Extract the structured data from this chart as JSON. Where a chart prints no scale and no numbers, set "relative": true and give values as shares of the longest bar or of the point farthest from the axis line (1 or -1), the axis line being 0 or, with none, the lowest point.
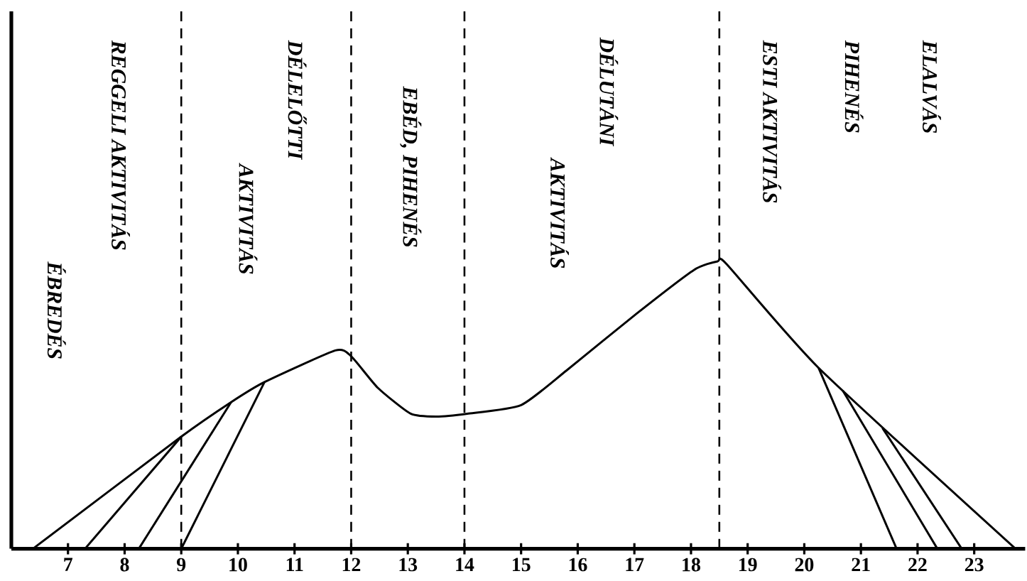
{
  "chart_data": {
    "type": "line",
    "relative": true,
    "xlim": [
      6.0,
      23.9
    ],
    "xticks": [
      7,
      8,
      9,
      10,
      11,
      12,
      13,
      14,
      15,
      16,
      17,
      18,
      19,
      20,
      21,
      22,
      23
    ],
    "series": [
      {
        "color": "#000000",
        "x": [
          6.38,
          9.0,
          9.88,
          10.47,
          11.72,
          12.0,
          12.47,
          13.05,
          13.5,
          14.05,
          15.0,
          15.8,
          17.05,
          18.05,
          18.47,
          18.63,
          20.25,
          23.73
        ],
        "values": [
          0,
          0.39,
          0.51,
          0.58,
          0.69,
          0.67,
          0.56,
          0.47,
          0.46,
          0.47,
          0.5,
          0.62,
          0.82,
          0.97,
          1.0,
          0.99,
          0.63,
          0
        ]
      },
      {
        "color": "#000000",
        "x": [
          7.3,
          9.0
        ],
        "values": [
          0,
          0.39
        ]
      },
      {
        "color": "#000000",
        "x": [
          8.25,
          9.88
        ],
        "values": [
          0,
          0.51
        ]
      },
      {
        "color": "#000000",
        "x": [
          9.0,
          10.47
        ],
        "values": [
          0,
          0.58
        ]
      },
      {
        "color": "#000000",
        "x": [
          20.25,
          21.63
        ],
        "values": [
          0.63,
          0
        ]
      },
      {
        "color": "#000000",
        "x": [
          20.68,
          22.35
        ],
        "values": [
          0.55,
          0
        ]
      },
      {
        "color": "#000000",
        "x": [
          21.38,
          22.78
        ],
        "values": [
          0.42,
          0
        ]
      }
    ],
    "ref_lines": [
      {
        "axis": "x",
        "value": 9,
        "line_style": "dashed",
        "color": "#000000"
      },
      {
        "axis": "x",
        "value": 12,
        "line_style": "dashed",
        "color": "#000000"
      },
      {
        "axis": "x",
        "value": 14,
        "line_style": "dashed",
        "color": "#000000"
      },
      {
        "axis": "x",
        "value": 18.5,
        "line_style": "dashed",
        "color": "#000000"
      }
    ],
    "annotations": [
      "ÉBREDÉS",
      "REGGELI AKTIVITÁS",
      "DÉLELŐTTI",
      "AKTIVITÁS",
      "EBÉD, PIHENÉS",
      "DÉLUTÁNI",
      "AKTIVITÁS",
      "ESTI AKTIVITÁS",
      "PIHENÉS",
      "ELALVÁS"
    ]
  }
}
